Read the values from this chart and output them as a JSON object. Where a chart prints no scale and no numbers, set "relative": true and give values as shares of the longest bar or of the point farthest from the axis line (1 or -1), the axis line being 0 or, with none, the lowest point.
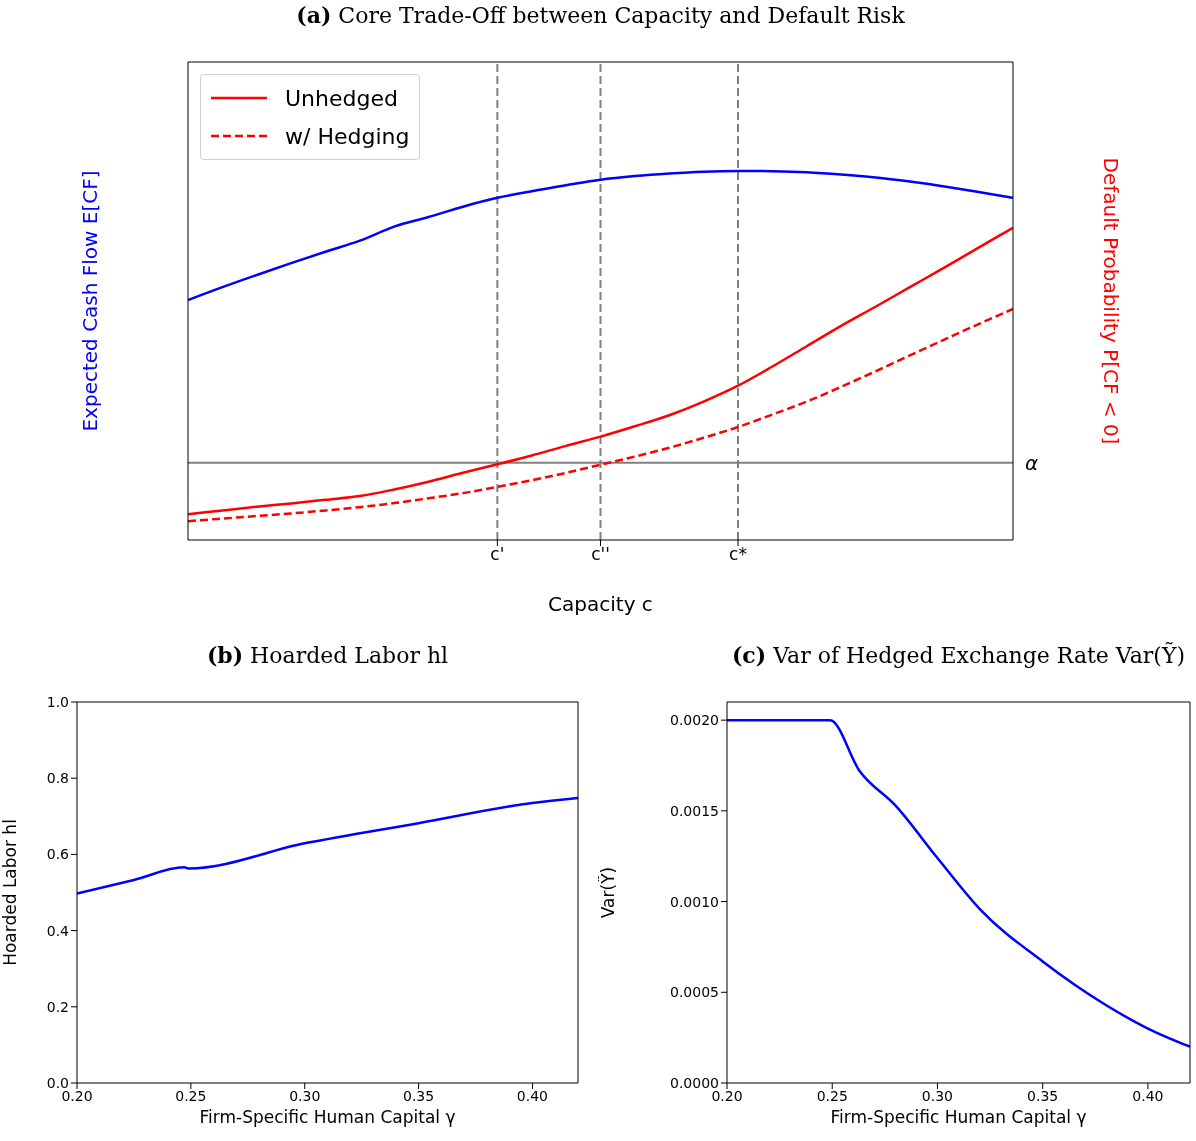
{
  "chart_data": [
    {
      "type": "line",
      "title": "(a) Core Trade-Off between Capacity and Default Risk",
      "xlabel": "Capacity c",
      "ylabel": "Expected Cash Flow E[CF]",
      "y2label": "Default Probability P[CF < 0]",
      "relative": true,
      "categories": [
        null,
        null,
        null,
        null,
        null,
        null,
        null,
        null,
        null,
        "c'",
        null,
        null,
        "c''",
        null,
        null,
        null,
        "c*",
        null,
        null,
        null,
        null,
        null,
        null,
        null,
        null
      ],
      "legend": "top left",
      "line_style": "solid",
      "marker": "none",
      "series": [
        {
          "color": "#0000ff",
          "values": [
            0.65,
            0.685,
            0.718,
            0.75,
            0.781,
            0.811,
            0.849,
            0.875,
            0.903,
            0.927,
            0.945,
            0.961,
            0.976,
            0.986,
            0.993,
            0.998,
            1.0,
            0.999,
            0.996,
            0.99,
            0.982,
            0.971,
            0.958,
            0.943,
            0.927
          ]
        },
        {
          "name": "Unhedged",
          "color": "#ff0000",
          "axis": "y2",
          "values": [
            0.07,
            0.08,
            0.09,
            0.099,
            0.109,
            0.119,
            0.137,
            0.158,
            0.182,
            0.205,
            0.229,
            0.255,
            0.28,
            0.308,
            0.338,
            0.375,
            0.418,
            0.47,
            0.525,
            0.58,
            0.632,
            0.685,
            0.738,
            0.792,
            0.846
          ]
        },
        {
          "name": "w/ Hedging",
          "color": "#ff0000",
          "axis": "y2",
          "line_style": "dashed",
          "values": [
            0.051,
            0.058,
            0.065,
            0.072,
            0.08,
            0.089,
            0.1,
            0.113,
            0.127,
            0.144,
            0.162,
            0.182,
            0.204,
            0.226,
            0.25,
            0.277,
            0.306,
            0.34,
            0.375,
            0.415,
            0.457,
            0.5,
            0.543,
            0.585,
            0.626
          ]
        }
      ],
      "ref_lines": [
        {
          "axis": "x",
          "value": "c'",
          "label": null,
          "color": "#808080",
          "line_style": "dashed"
        },
        {
          "axis": "x",
          "value": "c''",
          "label": null,
          "color": "#808080",
          "line_style": "dashed"
        },
        {
          "axis": "x",
          "value": "c*",
          "label": null,
          "color": "#808080",
          "line_style": "dashed"
        },
        {
          "axis": "y2",
          "value": 0.209,
          "label": "α",
          "color": "#808080",
          "line_style": "solid"
        }
      ]
    },
    {
      "type": "line",
      "title": "(b) Hoarded Labor hl",
      "xlabel": "Firm-Specific Human Capital γ",
      "ylabel": "Hoarded Labor hl",
      "xlim": [
        0.2,
        0.42
      ],
      "xticks": [
        {
          "value": 0.2,
          "label": "0.20"
        },
        {
          "value": 0.25,
          "label": "0.25"
        },
        {
          "value": 0.3,
          "label": "0.30"
        },
        {
          "value": 0.35,
          "label": "0.35"
        },
        {
          "value": 0.4,
          "label": "0.40"
        }
      ],
      "ylim": [
        0,
        1
      ],
      "yticks": [
        {
          "value": 0,
          "label": "0.0"
        },
        {
          "value": 0.2,
          "label": "0.2"
        },
        {
          "value": 0.4,
          "label": "0.4"
        },
        {
          "value": 0.6,
          "label": "0.6"
        },
        {
          "value": 0.8,
          "label": "0.8"
        },
        {
          "value": 1,
          "label": "1.0"
        }
      ],
      "line_style": "solid",
      "marker": "none",
      "series": [
        {
          "color": "#0000ff",
          "x": [
            0.2,
            0.225,
            0.247,
            0.249,
            0.3,
            0.35,
            0.4,
            0.42
          ],
          "values": [
            0.497,
            0.533,
            0.566,
            0.563,
            0.629,
            0.682,
            0.735,
            0.748
          ]
        }
      ]
    },
    {
      "type": "line",
      "title": "(c) Var of Hedged Exchange Rate Var(Ỹ)",
      "xlabel": "Firm-Specific Human Capital γ",
      "ylabel": "Var(Ỹ)",
      "xlim": [
        0.2,
        0.42
      ],
      "xticks": [
        {
          "value": 0.2,
          "label": "0.20"
        },
        {
          "value": 0.25,
          "label": "0.25"
        },
        {
          "value": 0.3,
          "label": "0.30"
        },
        {
          "value": 0.35,
          "label": "0.35"
        },
        {
          "value": 0.4,
          "label": "0.40"
        }
      ],
      "ylim": [
        0,
        0.0021
      ],
      "yticks": [
        {
          "value": 0,
          "label": "0.0000"
        },
        {
          "value": 0.0005,
          "label": "0.0005"
        },
        {
          "value": 0.001,
          "label": "0.0010"
        },
        {
          "value": 0.0015,
          "label": "0.0015"
        },
        {
          "value": 0.002,
          "label": "0.0020"
        }
      ],
      "line_style": "solid",
      "marker": "none",
      "series": [
        {
          "color": "#0000ff",
          "x": [
            0.2,
            0.225,
            0.249,
            0.263,
            0.28,
            0.3,
            0.32,
            0.35,
            0.38,
            0.4,
            0.42
          ],
          "values": [
            0.002,
            0.002,
            0.002,
            0.00172,
            0.00153,
            0.00124,
            0.00096,
            0.00067,
            0.00043,
            0.0003,
            0.0002
          ]
        }
      ]
    }
  ]
}
